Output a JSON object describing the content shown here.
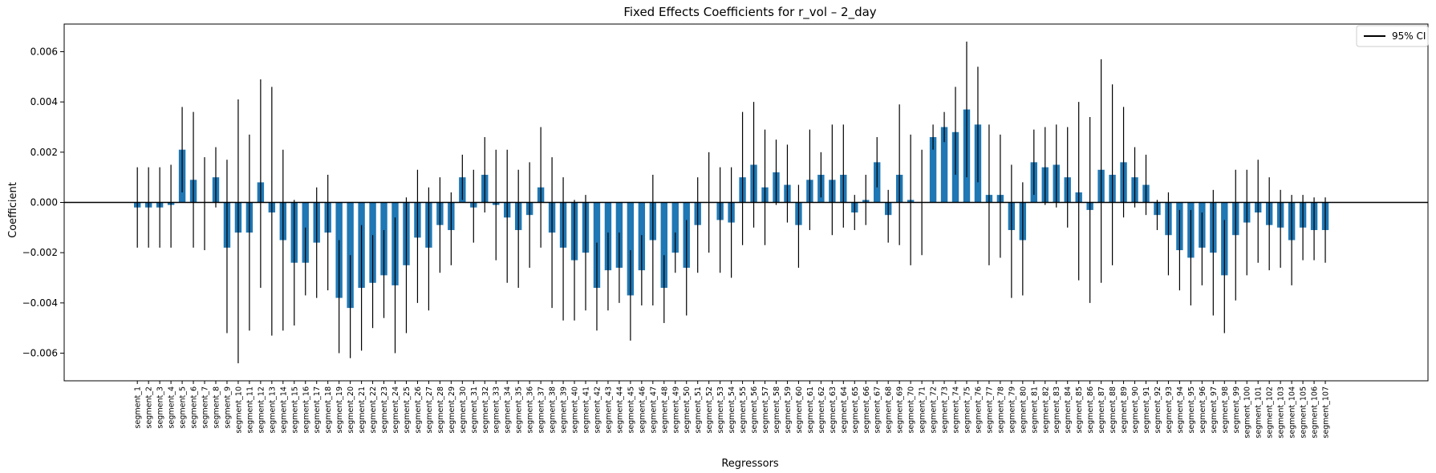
{
  "chart_data": {
    "type": "bar",
    "title": "Fixed Effects Coefficients for r_vol – 2_day",
    "xlabel": "Regressors",
    "ylabel": "Coefficient",
    "ylim": [
      -0.0071,
      0.0071
    ],
    "yticks": [
      -0.006,
      -0.004,
      -0.002,
      0.0,
      0.002,
      0.004,
      0.006
    ],
    "ytick_labels": [
      "−0.006",
      "−0.004",
      "−0.002",
      "0.000",
      "0.002",
      "0.004",
      "0.006"
    ],
    "legend": {
      "position": "top-right",
      "entries": [
        "95% CI"
      ]
    },
    "colors": {
      "bar": "#1f77b4",
      "ci": "#000000",
      "zero_line": "#000000"
    },
    "categories": [
      "segment_1",
      "segment_2",
      "segment_3",
      "segment_4",
      "segment_5",
      "segment_6",
      "segment_7",
      "segment_8",
      "segment_9",
      "segment_10",
      "segment_11",
      "segment_12",
      "segment_13",
      "segment_14",
      "segment_15",
      "segment_16",
      "segment_17",
      "segment_18",
      "segment_19",
      "segment_20",
      "segment_21",
      "segment_22",
      "segment_23",
      "segment_24",
      "segment_25",
      "segment_26",
      "segment_27",
      "segment_28",
      "segment_29",
      "segment_30",
      "segment_31",
      "segment_32",
      "segment_33",
      "segment_34",
      "segment_35",
      "segment_36",
      "segment_37",
      "segment_38",
      "segment_39",
      "segment_40",
      "segment_41",
      "segment_42",
      "segment_43",
      "segment_44",
      "segment_45",
      "segment_46",
      "segment_47",
      "segment_48",
      "segment_49",
      "segment_50",
      "segment_51",
      "segment_52",
      "segment_53",
      "segment_54",
      "segment_55",
      "segment_56",
      "segment_57",
      "segment_58",
      "segment_59",
      "segment_60",
      "segment_61",
      "segment_62",
      "segment_63",
      "segment_64",
      "segment_65",
      "segment_66",
      "segment_67",
      "segment_68",
      "segment_69",
      "segment_70",
      "segment_71",
      "segment_72",
      "segment_73",
      "segment_74",
      "segment_75",
      "segment_76",
      "segment_77",
      "segment_78",
      "segment_79",
      "segment_80",
      "segment_81",
      "segment_82",
      "segment_83",
      "segment_84",
      "segment_85",
      "segment_86",
      "segment_87",
      "segment_88",
      "segment_89",
      "segment_90",
      "segment_91",
      "segment_92",
      "segment_93",
      "segment_94",
      "segment_95",
      "segment_96",
      "segment_97",
      "segment_98",
      "segment_99",
      "segment_100",
      "segment_101",
      "segment_102",
      "segment_103",
      "segment_104",
      "segment_105",
      "segment_106",
      "segment_107"
    ],
    "values": [
      -0.0002,
      -0.0002,
      -0.0002,
      -0.0001,
      0.0021,
      0.0009,
      0.0,
      0.001,
      -0.0018,
      -0.0012,
      -0.0012,
      0.0008,
      -0.0004,
      -0.0015,
      -0.0024,
      -0.0024,
      -0.0016,
      -0.0012,
      -0.0038,
      -0.0042,
      -0.0034,
      -0.0032,
      -0.0029,
      -0.0033,
      -0.0025,
      -0.0014,
      -0.0018,
      -0.0009,
      -0.0011,
      0.001,
      -0.0002,
      0.0011,
      -0.0001,
      -0.0006,
      -0.0011,
      -0.0005,
      0.0006,
      -0.0012,
      -0.0018,
      -0.0023,
      -0.002,
      -0.0034,
      -0.0027,
      -0.0026,
      -0.0037,
      -0.0027,
      -0.0015,
      -0.0034,
      -0.002,
      -0.0026,
      -0.0009,
      0.0,
      -0.0007,
      -0.0008,
      0.001,
      0.0015,
      0.0006,
      0.0012,
      0.0007,
      -0.0009,
      0.0009,
      0.0011,
      0.0009,
      0.0011,
      -0.0004,
      0.0001,
      0.0016,
      -0.0005,
      0.0011,
      0.0001,
      0.0,
      0.0026,
      0.003,
      0.0028,
      0.0037,
      0.0031,
      0.0003,
      0.0003,
      -0.0011,
      -0.0015,
      0.0016,
      0.0014,
      0.0015,
      0.001,
      0.0004,
      -0.0003,
      0.0013,
      0.0011,
      0.0016,
      0.001,
      0.0007,
      -0.0005,
      -0.0013,
      -0.0019,
      -0.0022,
      -0.0018,
      -0.002,
      -0.0029,
      -0.0013,
      -0.0008,
      -0.0004,
      -0.0009,
      -0.001,
      -0.0015,
      -0.001,
      -0.0011,
      -0.0011
    ],
    "ci_lower": [
      -0.0018,
      -0.0018,
      -0.0018,
      -0.0018,
      0.0004,
      -0.0018,
      -0.0019,
      -0.0002,
      -0.0052,
      -0.0064,
      -0.0051,
      -0.0034,
      -0.0053,
      -0.0051,
      -0.0049,
      -0.0037,
      -0.0038,
      -0.0035,
      -0.006,
      -0.0062,
      -0.0059,
      -0.005,
      -0.0046,
      -0.006,
      -0.0052,
      -0.004,
      -0.0043,
      -0.0028,
      -0.0025,
      0.0001,
      -0.0016,
      -0.0004,
      -0.0023,
      -0.0032,
      -0.0034,
      -0.0026,
      -0.0018,
      -0.0042,
      -0.0047,
      -0.0047,
      -0.0043,
      -0.0051,
      -0.0043,
      -0.004,
      -0.0055,
      -0.0041,
      -0.0041,
      -0.0048,
      -0.0028,
      -0.0045,
      -0.0028,
      -0.002,
      -0.0028,
      -0.003,
      -0.0017,
      -0.001,
      -0.0017,
      -0.0001,
      -0.0008,
      -0.0026,
      -0.0011,
      0.0002,
      -0.0013,
      -0.001,
      -0.0011,
      -0.0009,
      0.0006,
      -0.0016,
      -0.0017,
      -0.0025,
      -0.0021,
      0.0021,
      0.0024,
      0.0011,
      0.001,
      0.0008,
      -0.0025,
      -0.0022,
      -0.0038,
      -0.0037,
      0.0003,
      -0.0001,
      -0.0002,
      -0.001,
      -0.0031,
      -0.004,
      -0.0032,
      -0.0025,
      -0.0006,
      -0.0002,
      -0.0005,
      -0.0011,
      -0.0029,
      -0.0035,
      -0.0041,
      -0.0033,
      -0.0045,
      -0.0052,
      -0.0039,
      -0.0029,
      -0.0024,
      -0.0027,
      -0.0026,
      -0.0033,
      -0.0023,
      -0.0023,
      -0.0024
    ],
    "ci_upper": [
      0.0014,
      0.0014,
      0.0014,
      0.0015,
      0.0038,
      0.0036,
      0.0018,
      0.0022,
      0.0017,
      0.0041,
      0.0027,
      0.0049,
      0.0046,
      0.0021,
      0.0001,
      -0.001,
      0.0006,
      0.0011,
      -0.0015,
      -0.0021,
      -0.0009,
      -0.0013,
      -0.0011,
      -0.0006,
      0.0002,
      0.0013,
      0.0006,
      0.001,
      0.0004,
      0.0019,
      0.0013,
      0.0026,
      0.0021,
      0.0021,
      0.0013,
      0.0016,
      0.003,
      0.0018,
      0.001,
      0.0001,
      0.0003,
      -0.0016,
      -0.0012,
      -0.0012,
      -0.0019,
      -0.0013,
      0.0011,
      -0.0021,
      -0.0012,
      -0.0007,
      0.001,
      0.002,
      0.0014,
      0.0014,
      0.0036,
      0.004,
      0.0029,
      0.0025,
      0.0023,
      0.0007,
      0.0029,
      0.002,
      0.0031,
      0.0031,
      0.0003,
      0.0011,
      0.0026,
      0.0005,
      0.0039,
      0.0027,
      0.0021,
      0.0031,
      0.0036,
      0.0046,
      0.0064,
      0.0054,
      0.0031,
      0.0027,
      0.0015,
      0.0008,
      0.0029,
      0.003,
      0.0031,
      0.003,
      0.004,
      0.0034,
      0.0057,
      0.0047,
      0.0038,
      0.0022,
      0.0019,
      0.0001,
      0.0004,
      -0.0003,
      -0.0003,
      -0.0004,
      0.0005,
      -0.0007,
      0.0013,
      0.0013,
      0.0017,
      0.001,
      0.0005,
      0.0003,
      0.0003,
      0.0002,
      0.0002
    ]
  }
}
